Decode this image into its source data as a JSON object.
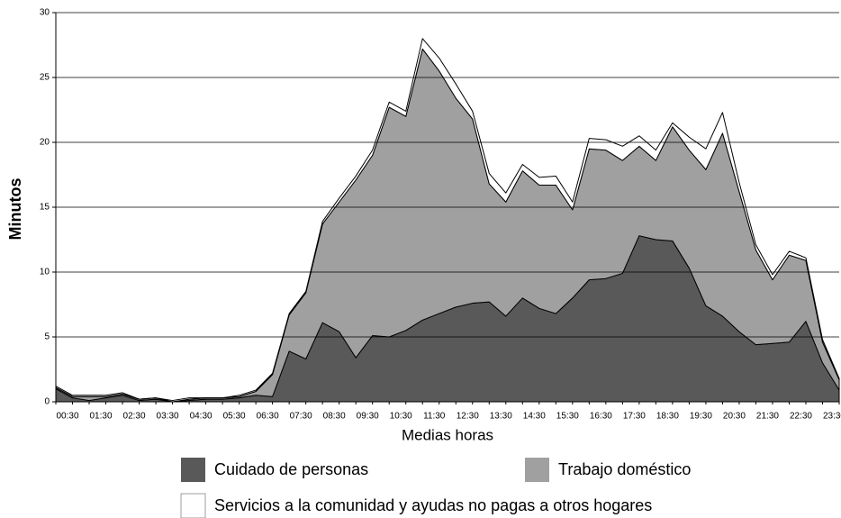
{
  "chart_data": {
    "type": "stacked_area",
    "x_label": "Medias horas",
    "y_label": "Minutos",
    "categories": [
      "00:30",
      null,
      "01:30",
      null,
      "02:30",
      null,
      "03:30",
      null,
      "04:30",
      null,
      "05:30",
      null,
      "06:30",
      null,
      "07:30",
      null,
      "08:30",
      null,
      "09:30",
      null,
      "10:30",
      null,
      "11:30",
      null,
      "12:30",
      null,
      "13:30",
      null,
      "14:30",
      null,
      "15:30",
      null,
      "16:30",
      null,
      "17:30",
      null,
      "18:30",
      null,
      "19:30",
      null,
      "20:30",
      null,
      "21:30",
      null,
      "22:30",
      null,
      "23:30",
      null
    ],
    "series": [
      {
        "name": "Cuidado de personas",
        "color": "#595959",
        "values": [
          1.0,
          0.3,
          0.1,
          0.3,
          0.5,
          0.1,
          0.2,
          0.0,
          0.1,
          0.2,
          0.2,
          0.3,
          0.5,
          0.4,
          3.9,
          3.3,
          6.1,
          5.4,
          3.4,
          5.1,
          5.0,
          5.5,
          6.3,
          6.8,
          7.3,
          7.6,
          7.7,
          6.6,
          8.0,
          7.2,
          6.8,
          8.0,
          9.4,
          9.5,
          9.9,
          12.8,
          12.5,
          12.4,
          10.3,
          7.4,
          6.6,
          5.4,
          4.4,
          4.5,
          4.6,
          6.2,
          3.0,
          0.9
        ]
      },
      {
        "name": "Trabajo doméstico",
        "color": "#a0a0a0",
        "values": [
          0.1,
          0.1,
          0.3,
          0.1,
          0.1,
          0.1,
          0.1,
          0.0,
          0.1,
          0.1,
          0.1,
          0.1,
          0.3,
          1.7,
          2.8,
          5.1,
          7.6,
          10.0,
          13.7,
          13.9,
          17.7,
          16.5,
          20.9,
          18.7,
          16.1,
          14.2,
          9.1,
          8.8,
          9.8,
          9.5,
          9.9,
          6.8,
          10.1,
          9.9,
          8.7,
          6.9,
          6.1,
          8.8,
          9.1,
          10.5,
          14.1,
          10.8,
          7.3,
          4.9,
          6.7,
          4.7,
          1.6,
          0.8
        ]
      },
      {
        "name": "Servicios a la comunidad y ayudas no  pagas a otros hogares",
        "color": "#ffffff",
        "values": [
          0.1,
          0.1,
          0.1,
          0.1,
          0.1,
          0.0,
          0.0,
          0.1,
          0.1,
          0.0,
          0.0,
          0.1,
          0.1,
          0.1,
          0.1,
          0.1,
          0.2,
          0.3,
          0.3,
          0.4,
          0.4,
          0.4,
          0.8,
          1.0,
          1.1,
          0.6,
          0.8,
          0.7,
          0.5,
          0.6,
          0.7,
          0.6,
          0.8,
          0.8,
          1.1,
          0.8,
          0.8,
          0.3,
          1.0,
          1.6,
          1.6,
          0.7,
          0.4,
          0.4,
          0.3,
          0.2,
          0.2,
          0.1
        ]
      }
    ],
    "ylim": [
      0,
      30
    ],
    "yticks": [
      0,
      5,
      10,
      15,
      20,
      25,
      30
    ],
    "grid": true,
    "legend": "bottom"
  }
}
